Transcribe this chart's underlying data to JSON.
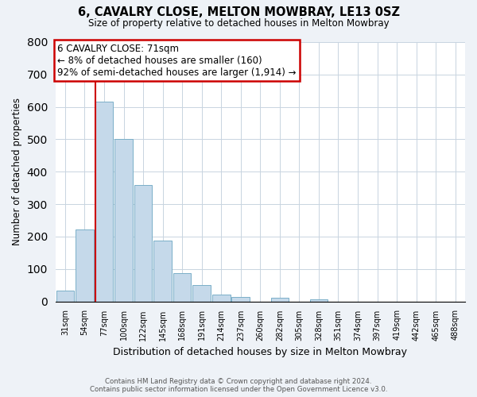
{
  "title": "6, CAVALRY CLOSE, MELTON MOWBRAY, LE13 0SZ",
  "subtitle": "Size of property relative to detached houses in Melton Mowbray",
  "xlabel": "Distribution of detached houses by size in Melton Mowbray",
  "ylabel": "Number of detached properties",
  "bin_labels": [
    "31sqm",
    "54sqm",
    "77sqm",
    "100sqm",
    "122sqm",
    "145sqm",
    "168sqm",
    "191sqm",
    "214sqm",
    "237sqm",
    "260sqm",
    "282sqm",
    "305sqm",
    "328sqm",
    "351sqm",
    "374sqm",
    "397sqm",
    "419sqm",
    "442sqm",
    "465sqm",
    "488sqm"
  ],
  "bar_values": [
    33,
    222,
    617,
    500,
    360,
    188,
    88,
    50,
    22,
    13,
    0,
    10,
    0,
    7,
    0,
    0,
    0,
    0,
    0,
    0,
    0
  ],
  "bar_color": "#c5d9ea",
  "bar_edge_color": "#7aafc8",
  "vline_color": "#cc0000",
  "vline_x_index": 2,
  "annotation_title": "6 CAVALRY CLOSE: 71sqm",
  "annotation_line1": "← 8% of detached houses are smaller (160)",
  "annotation_line2": "92% of semi-detached houses are larger (1,914) →",
  "annotation_box_color": "#ffffff",
  "annotation_box_edge": "#cc0000",
  "ylim": [
    0,
    800
  ],
  "yticks": [
    0,
    100,
    200,
    300,
    400,
    500,
    600,
    700,
    800
  ],
  "footer_line1": "Contains HM Land Registry data © Crown copyright and database right 2024.",
  "footer_line2": "Contains public sector information licensed under the Open Government Licence v3.0.",
  "bg_color": "#eef2f7",
  "plot_bg_color": "#ffffff",
  "grid_color": "#c8d4e0"
}
